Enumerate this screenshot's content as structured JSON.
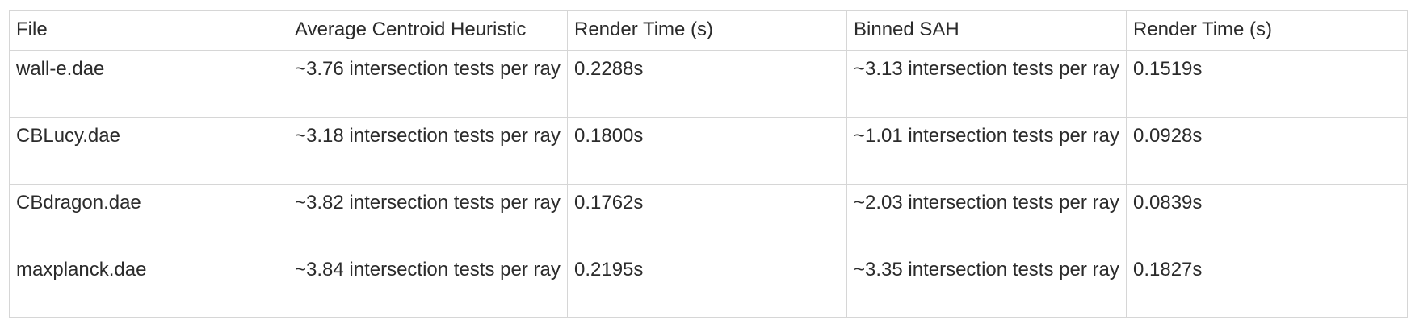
{
  "table": {
    "headers": [
      "File",
      "Average Centroid Heuristic",
      "Render Time (s)",
      "Binned SAH",
      "Render Time (s)"
    ],
    "rows": [
      [
        "wall-e.dae",
        "~3.76 intersection tests per ray",
        "0.2288s",
        "~3.13 intersection tests per ray",
        "0.1519s"
      ],
      [
        "CBLucy.dae",
        "~3.18 intersection tests per ray",
        "0.1800s",
        "~1.01 intersection tests per ray",
        "0.0928s"
      ],
      [
        "CBdragon.dae",
        "~3.82 intersection tests per ray",
        "0.1762s",
        "~2.03 intersection tests per ray",
        "0.0839s"
      ],
      [
        "maxplanck.dae",
        "~3.84 intersection tests per ray",
        "0.2195s",
        "~3.35 intersection tests per ray",
        "0.1827s"
      ]
    ]
  }
}
